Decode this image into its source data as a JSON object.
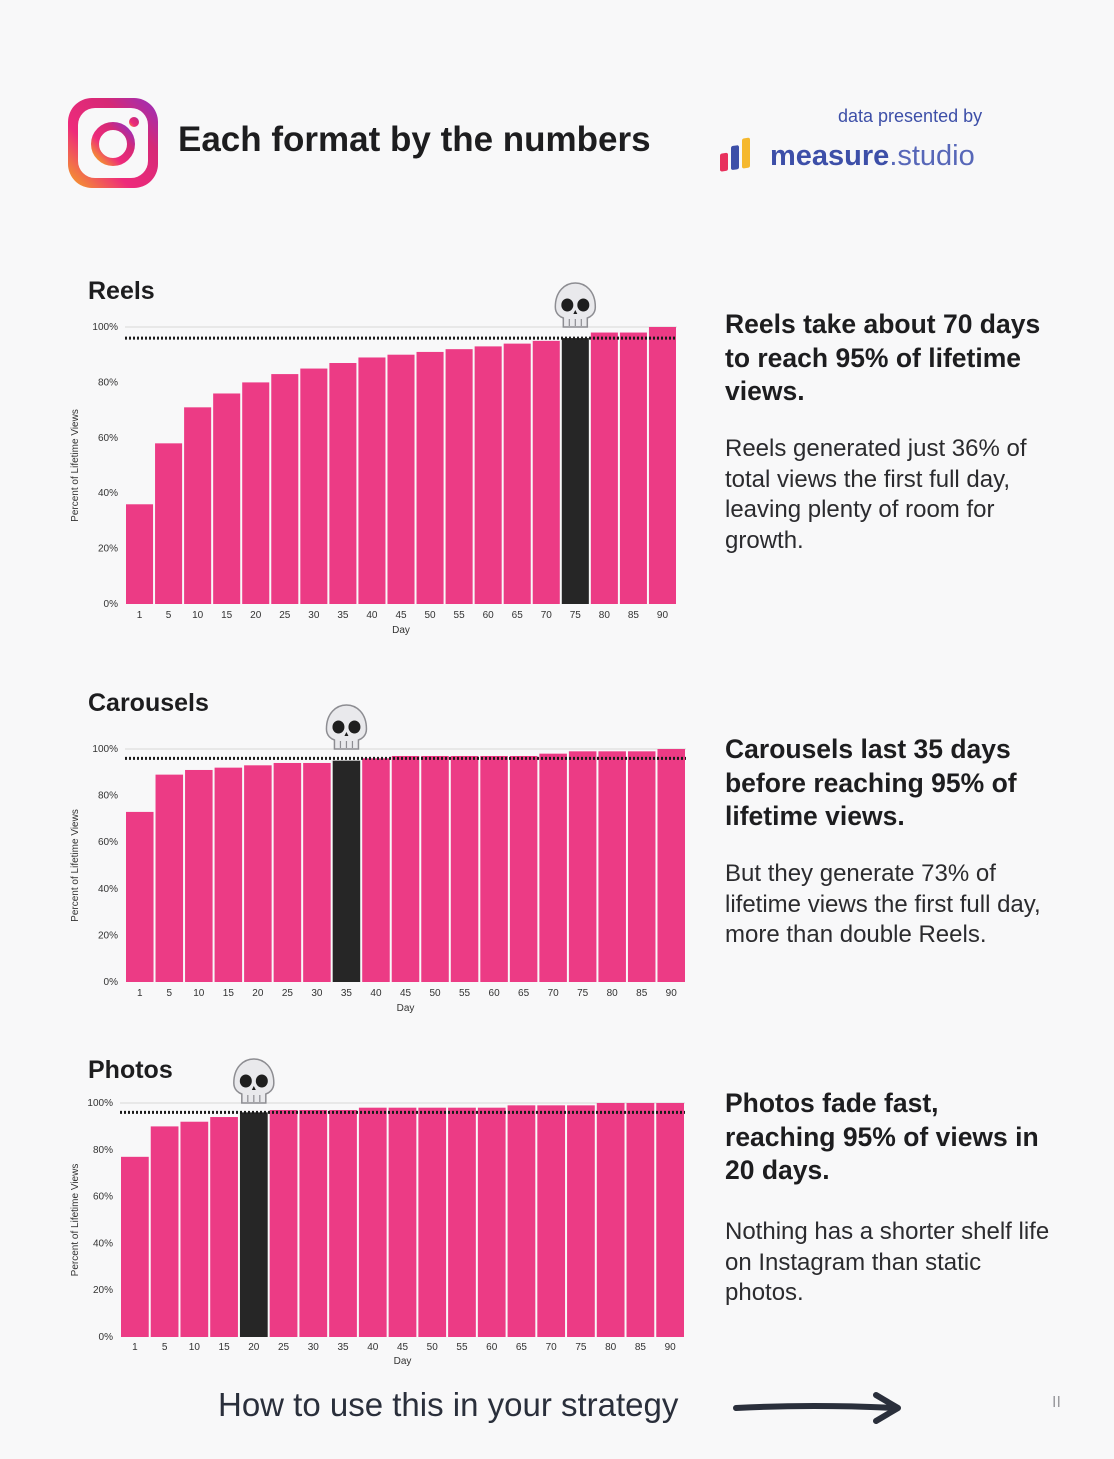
{
  "header": {
    "title": "Each format by the numbers",
    "presented_by": "data presented by",
    "brand_bold": "measure",
    "brand_light": ".studio",
    "logo_icon": "instagram-icon",
    "brand_icon": "measure-studio-bars-icon"
  },
  "colors": {
    "bar": "#ec3b85",
    "highlight": "#262626",
    "brand_blue": "#3d4fa8"
  },
  "chart_data": [
    {
      "type": "bar",
      "title": "Reels",
      "xlabel": "Day",
      "ylabel": "Percent of Lifetime Views",
      "ylim": [
        0,
        100
      ],
      "yticks": [
        "0%",
        "20%",
        "40%",
        "60%",
        "80%",
        "100%"
      ],
      "categories": [
        "1",
        "5",
        "10",
        "15",
        "20",
        "25",
        "30",
        "35",
        "40",
        "45",
        "50",
        "55",
        "60",
        "65",
        "70",
        "75",
        "80",
        "85",
        "90"
      ],
      "values": [
        36,
        58,
        71,
        76,
        80,
        83,
        85,
        87,
        89,
        90,
        91,
        92,
        93,
        94,
        95,
        96,
        98,
        98,
        100
      ],
      "highlight_day": "75",
      "threshold": 96,
      "marker_icon": "skull-icon"
    },
    {
      "type": "bar",
      "title": "Carousels",
      "xlabel": "Day",
      "ylabel": "Percent of Lifetime Views",
      "ylim": [
        0,
        100
      ],
      "yticks": [
        "0%",
        "20%",
        "40%",
        "60%",
        "80%",
        "100%"
      ],
      "categories": [
        "1",
        "5",
        "10",
        "15",
        "20",
        "25",
        "30",
        "35",
        "40",
        "45",
        "50",
        "55",
        "60",
        "65",
        "70",
        "75",
        "80",
        "85",
        "90"
      ],
      "values": [
        73,
        89,
        91,
        92,
        93,
        94,
        94,
        95,
        96,
        97,
        97,
        97,
        97,
        97,
        98,
        99,
        99,
        99,
        100
      ],
      "highlight_day": "35",
      "threshold": 96,
      "marker_icon": "skull-icon"
    },
    {
      "type": "bar",
      "title": "Photos",
      "xlabel": "Day",
      "ylabel": "Percent of Lifetime Views",
      "ylim": [
        0,
        100
      ],
      "yticks": [
        "0%",
        "20%",
        "40%",
        "60%",
        "80%",
        "100%"
      ],
      "categories": [
        "1",
        "5",
        "10",
        "15",
        "20",
        "25",
        "30",
        "35",
        "40",
        "45",
        "50",
        "55",
        "60",
        "65",
        "70",
        "75",
        "80",
        "85",
        "90"
      ],
      "values": [
        77,
        90,
        92,
        94,
        96,
        97,
        97,
        97,
        98,
        98,
        98,
        98,
        98,
        99,
        99,
        99,
        100,
        100,
        100
      ],
      "highlight_day": "20",
      "threshold": 96,
      "marker_icon": "skull-icon"
    }
  ],
  "insights": [
    {
      "headline": "Reels take about 70 days to reach 95% of lifetime views.",
      "body": "Reels generated just 36% of total views the first full day, leaving plenty of room for growth."
    },
    {
      "headline": "Carousels last 35 days before reaching 95% of lifetime views.",
      "body": "But they generate 73% of lifetime views the first full day, more than double Reels."
    },
    {
      "headline": "Photos fade fast, reaching 95% of views in 20 days.",
      "body": "Nothing has a shorter shelf life on Instagram than static photos."
    }
  ],
  "footer": {
    "cta": "How to use this in your strategy",
    "arrow_icon": "arrow-right-icon",
    "page_number": "II"
  }
}
